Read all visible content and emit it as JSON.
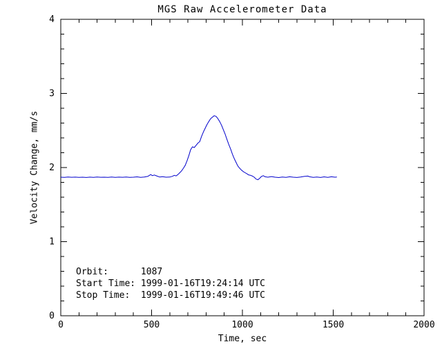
{
  "chart_data": {
    "type": "line",
    "title": "MGS Raw Accelerometer Data",
    "xlabel": "Time, sec",
    "ylabel": "Velocity Change, mm/s",
    "xlim": [
      0,
      2000
    ],
    "ylim": [
      0,
      4
    ],
    "xticks": [
      0,
      500,
      1000,
      1500,
      2000
    ],
    "yticks": [
      0,
      1,
      2,
      3,
      4
    ],
    "x_minor_per_major": 5,
    "y_minor_per_major": 5,
    "grid": false,
    "legend": false,
    "line_color": "#0000cc",
    "axis_color": "#000000",
    "background_color": "#ffffff",
    "annotations": [
      {
        "name": "orbit",
        "text": "Orbit:      1087"
      },
      {
        "name": "start-time",
        "text": "Start Time: 1999-01-16T19:24:14 UTC"
      },
      {
        "name": "stop-time",
        "text": "Stop Time:  1999-01-16T19:49:46 UTC"
      }
    ],
    "series": [
      {
        "name": "velocity_change",
        "points": [
          [
            0,
            1.87
          ],
          [
            20,
            1.868
          ],
          [
            40,
            1.872
          ],
          [
            60,
            1.869
          ],
          [
            80,
            1.871
          ],
          [
            100,
            1.868
          ],
          [
            120,
            1.87
          ],
          [
            140,
            1.866
          ],
          [
            160,
            1.871
          ],
          [
            180,
            1.868
          ],
          [
            200,
            1.872
          ],
          [
            220,
            1.869
          ],
          [
            240,
            1.87
          ],
          [
            260,
            1.867
          ],
          [
            280,
            1.872
          ],
          [
            300,
            1.868
          ],
          [
            320,
            1.871
          ],
          [
            340,
            1.869
          ],
          [
            360,
            1.872
          ],
          [
            380,
            1.867
          ],
          [
            400,
            1.87
          ],
          [
            420,
            1.874
          ],
          [
            440,
            1.868
          ],
          [
            460,
            1.872
          ],
          [
            480,
            1.882
          ],
          [
            495,
            1.905
          ],
          [
            505,
            1.89
          ],
          [
            515,
            1.9
          ],
          [
            530,
            1.885
          ],
          [
            545,
            1.872
          ],
          [
            560,
            1.876
          ],
          [
            580,
            1.87
          ],
          [
            600,
            1.872
          ],
          [
            615,
            1.882
          ],
          [
            625,
            1.895
          ],
          [
            635,
            1.887
          ],
          [
            645,
            1.905
          ],
          [
            655,
            1.93
          ],
          [
            665,
            1.955
          ],
          [
            675,
            1.99
          ],
          [
            685,
            2.03
          ],
          [
            695,
            2.09
          ],
          [
            705,
            2.16
          ],
          [
            715,
            2.24
          ],
          [
            725,
            2.28
          ],
          [
            735,
            2.27
          ],
          [
            745,
            2.3
          ],
          [
            755,
            2.33
          ],
          [
            765,
            2.35
          ],
          [
            775,
            2.42
          ],
          [
            785,
            2.48
          ],
          [
            795,
            2.53
          ],
          [
            805,
            2.58
          ],
          [
            815,
            2.62
          ],
          [
            825,
            2.66
          ],
          [
            835,
            2.68
          ],
          [
            845,
            2.7
          ],
          [
            855,
            2.69
          ],
          [
            865,
            2.66
          ],
          [
            875,
            2.62
          ],
          [
            885,
            2.57
          ],
          [
            895,
            2.51
          ],
          [
            905,
            2.45
          ],
          [
            915,
            2.38
          ],
          [
            925,
            2.31
          ],
          [
            935,
            2.25
          ],
          [
            945,
            2.18
          ],
          [
            955,
            2.12
          ],
          [
            965,
            2.07
          ],
          [
            975,
            2.02
          ],
          [
            985,
            1.99
          ],
          [
            995,
            1.965
          ],
          [
            1005,
            1.945
          ],
          [
            1015,
            1.93
          ],
          [
            1025,
            1.915
          ],
          [
            1035,
            1.9
          ],
          [
            1045,
            1.895
          ],
          [
            1055,
            1.885
          ],
          [
            1065,
            1.87
          ],
          [
            1075,
            1.845
          ],
          [
            1085,
            1.835
          ],
          [
            1095,
            1.855
          ],
          [
            1105,
            1.88
          ],
          [
            1115,
            1.89
          ],
          [
            1125,
            1.875
          ],
          [
            1140,
            1.87
          ],
          [
            1160,
            1.878
          ],
          [
            1180,
            1.87
          ],
          [
            1200,
            1.865
          ],
          [
            1220,
            1.872
          ],
          [
            1240,
            1.868
          ],
          [
            1260,
            1.875
          ],
          [
            1280,
            1.87
          ],
          [
            1300,
            1.866
          ],
          [
            1320,
            1.872
          ],
          [
            1340,
            1.88
          ],
          [
            1360,
            1.885
          ],
          [
            1370,
            1.875
          ],
          [
            1390,
            1.868
          ],
          [
            1410,
            1.872
          ],
          [
            1430,
            1.866
          ],
          [
            1450,
            1.874
          ],
          [
            1470,
            1.868
          ],
          [
            1490,
            1.875
          ],
          [
            1510,
            1.87
          ],
          [
            1520,
            1.872
          ]
        ]
      }
    ]
  }
}
